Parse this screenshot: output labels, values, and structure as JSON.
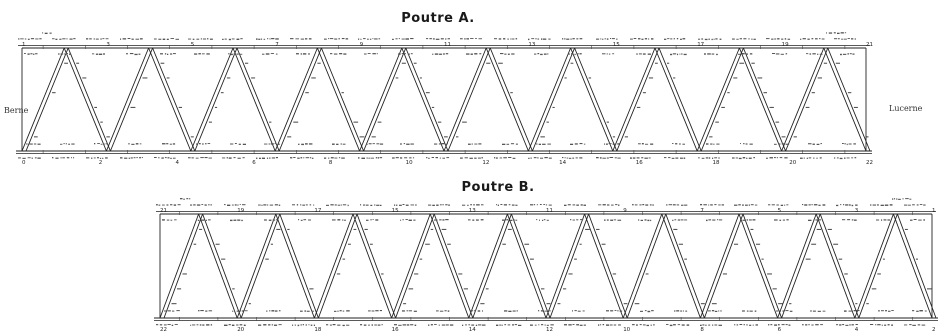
{
  "titles": {
    "girder_a": "Poutre A.",
    "girder_b": "Poutre B."
  },
  "places": {
    "left": "Berne",
    "right": "Lucerne"
  },
  "girder_a": {
    "top_nodes": [
      "1",
      "3",
      "5",
      "7",
      "9",
      "11",
      "13",
      "15",
      "17",
      "19",
      "21"
    ],
    "bottom_nodes": [
      "0",
      "2",
      "4",
      "6",
      "8",
      "10",
      "12",
      "14",
      "16",
      "18",
      "20",
      "22"
    ]
  },
  "girder_b": {
    "top_nodes": [
      "21",
      "19",
      "17",
      "15",
      "13",
      "11",
      "9",
      "7",
      "5",
      "3",
      "1"
    ],
    "bottom_nodes": [
      "22",
      "20",
      "18",
      "16",
      "14",
      "12",
      "10",
      "8",
      "6",
      "4",
      "2"
    ]
  }
}
